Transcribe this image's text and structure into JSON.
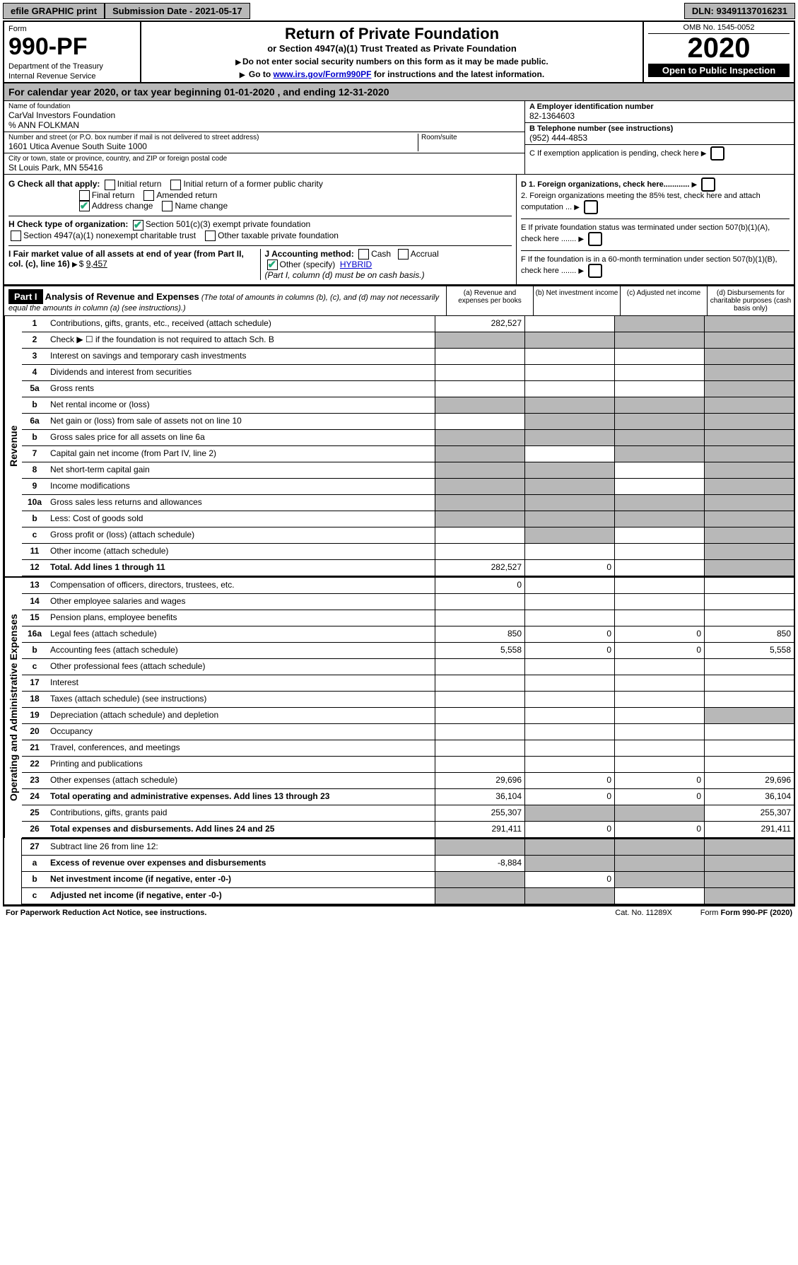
{
  "top": {
    "efile": "efile GRAPHIC print",
    "submission": "Submission Date - 2021-05-17",
    "dln": "DLN: 93491137016231"
  },
  "header": {
    "form_label": "Form",
    "form_number": "990-PF",
    "dept1": "Department of the Treasury",
    "dept2": "Internal Revenue Service",
    "title": "Return of Private Foundation",
    "subtitle": "or Section 4947(a)(1) Trust Treated as Private Foundation",
    "instr1": "Do not enter social security numbers on this form as it may be made public.",
    "instr2_prefix": "Go to ",
    "instr2_link": "www.irs.gov/Form990PF",
    "instr2_suffix": " for instructions and the latest information.",
    "omb": "OMB No. 1545-0052",
    "year": "2020",
    "open": "Open to Public Inspection"
  },
  "cal_year": {
    "prefix": "For calendar year 2020, or tax year beginning ",
    "begin": "01-01-2020",
    "mid": " , and ending ",
    "end": "12-31-2020"
  },
  "entity": {
    "name_label": "Name of foundation",
    "name": "CarVal Investors Foundation",
    "care_of": "% ANN FOLKMAN",
    "addr_label": "Number and street (or P.O. box number if mail is not delivered to street address)",
    "addr": "1601 Utica Avenue South Suite 1000",
    "room_label": "Room/suite",
    "city_label": "City or town, state or province, country, and ZIP or foreign postal code",
    "city": "St Louis Park, MN  55416",
    "ein_label": "A Employer identification number",
    "ein": "82-1364603",
    "phone_label": "B Telephone number (see instructions)",
    "phone": "(952) 444-4853",
    "c_label": "C If exemption application is pending, check here",
    "d1": "D 1. Foreign organizations, check here............",
    "d2": "2. Foreign organizations meeting the 85% test, check here and attach computation ...",
    "e": "E  If private foundation status was terminated under section 507(b)(1)(A), check here .......",
    "f": "F  If the foundation is in a 60-month termination under section 507(b)(1)(B), check here ......."
  },
  "g": {
    "label": "G Check all that apply:",
    "opts": [
      "Initial return",
      "Initial return of a former public charity",
      "Final return",
      "Amended return",
      "Address change",
      "Name change"
    ]
  },
  "h": {
    "label": "H Check type of organization:",
    "o1": "Section 501(c)(3) exempt private foundation",
    "o2": "Section 4947(a)(1) nonexempt charitable trust",
    "o3": "Other taxable private foundation"
  },
  "i": {
    "label": "I Fair market value of all assets at end of year (from Part II, col. (c), line 16)",
    "value": "9,457"
  },
  "j": {
    "label": "J Accounting method:",
    "cash": "Cash",
    "accrual": "Accrual",
    "other_label": "Other (specify)",
    "other_val": "HYBRID",
    "note": "(Part I, column (d) must be on cash basis.)"
  },
  "part1": {
    "tag": "Part I",
    "title": "Analysis of Revenue and Expenses",
    "note": "(The total of amounts in columns (b), (c), and (d) may not necessarily equal the amounts in column (a) (see instructions).)",
    "col_a": "(a)   Revenue and expenses per books",
    "col_b": "(b)  Net investment income",
    "col_c": "(c)  Adjusted net income",
    "col_d": "(d)  Disbursements for charitable purposes (cash basis only)"
  },
  "side_labels": {
    "rev": "Revenue",
    "exp": "Operating and Administrative Expenses"
  },
  "rows": {
    "r1": {
      "n": "1",
      "d": "Contributions, gifts, grants, etc., received (attach schedule)",
      "a": "282,527",
      "c_grey": true,
      "d_grey": true
    },
    "r2": {
      "n": "2",
      "d": "Check ▶ ☐ if the foundation is not required to attach Sch. B",
      "a_grey": true,
      "b_grey": true,
      "c_grey": true,
      "d_grey": true
    },
    "r3": {
      "n": "3",
      "d": "Interest on savings and temporary cash investments",
      "d_grey": true
    },
    "r4": {
      "n": "4",
      "d": "Dividends and interest from securities",
      "d_grey": true
    },
    "r5a": {
      "n": "5a",
      "d": "Gross rents",
      "d_grey": true
    },
    "r5b": {
      "n": "b",
      "d": "Net rental income or (loss)",
      "a_grey": true,
      "b_grey": true,
      "c_grey": true,
      "d_grey": true
    },
    "r6a": {
      "n": "6a",
      "d": "Net gain or (loss) from sale of assets not on line 10",
      "b_grey": true,
      "c_grey": true,
      "d_grey": true
    },
    "r6b": {
      "n": "b",
      "d": "Gross sales price for all assets on line 6a",
      "a_grey": true,
      "b_grey": true,
      "c_grey": true,
      "d_grey": true
    },
    "r7": {
      "n": "7",
      "d": "Capital gain net income (from Part IV, line 2)",
      "a_grey": true,
      "c_grey": true,
      "d_grey": true
    },
    "r8": {
      "n": "8",
      "d": "Net short-term capital gain",
      "a_grey": true,
      "b_grey": true,
      "d_grey": true
    },
    "r9": {
      "n": "9",
      "d": "Income modifications",
      "a_grey": true,
      "b_grey": true,
      "d_grey": true
    },
    "r10a": {
      "n": "10a",
      "d": "Gross sales less returns and allowances",
      "a_grey": true,
      "b_grey": true,
      "c_grey": true,
      "d_grey": true
    },
    "r10b": {
      "n": "b",
      "d": "Less: Cost of goods sold",
      "a_grey": true,
      "b_grey": true,
      "c_grey": true,
      "d_grey": true
    },
    "r10c": {
      "n": "c",
      "d": "Gross profit or (loss) (attach schedule)",
      "b_grey": true,
      "d_grey": true
    },
    "r11": {
      "n": "11",
      "d": "Other income (attach schedule)",
      "d_grey": true
    },
    "r12": {
      "n": "12",
      "d": "Total. Add lines 1 through 11",
      "a": "282,527",
      "b": "0",
      "d_grey": true,
      "bold": true
    },
    "r13": {
      "n": "13",
      "d": "Compensation of officers, directors, trustees, etc.",
      "a": "0"
    },
    "r14": {
      "n": "14",
      "d": "Other employee salaries and wages"
    },
    "r15": {
      "n": "15",
      "d": "Pension plans, employee benefits"
    },
    "r16a": {
      "n": "16a",
      "d": "Legal fees (attach schedule)",
      "a": "850",
      "b": "0",
      "c": "0",
      "dd": "850"
    },
    "r16b": {
      "n": "b",
      "d": "Accounting fees (attach schedule)",
      "a": "5,558",
      "b": "0",
      "c": "0",
      "dd": "5,558"
    },
    "r16c": {
      "n": "c",
      "d": "Other professional fees (attach schedule)"
    },
    "r17": {
      "n": "17",
      "d": "Interest"
    },
    "r18": {
      "n": "18",
      "d": "Taxes (attach schedule) (see instructions)"
    },
    "r19": {
      "n": "19",
      "d": "Depreciation (attach schedule) and depletion",
      "d_grey": true
    },
    "r20": {
      "n": "20",
      "d": "Occupancy"
    },
    "r21": {
      "n": "21",
      "d": "Travel, conferences, and meetings"
    },
    "r22": {
      "n": "22",
      "d": "Printing and publications"
    },
    "r23": {
      "n": "23",
      "d": "Other expenses (attach schedule)",
      "a": "29,696",
      "b": "0",
      "c": "0",
      "dd": "29,696"
    },
    "r24": {
      "n": "24",
      "d": "Total operating and administrative expenses. Add lines 13 through 23",
      "a": "36,104",
      "b": "0",
      "c": "0",
      "dd": "36,104",
      "bold": true
    },
    "r25": {
      "n": "25",
      "d": "Contributions, gifts, grants paid",
      "a": "255,307",
      "b_grey": true,
      "c_grey": true,
      "dd": "255,307"
    },
    "r26": {
      "n": "26",
      "d": "Total expenses and disbursements. Add lines 24 and 25",
      "a": "291,411",
      "b": "0",
      "c": "0",
      "dd": "291,411",
      "bold": true
    },
    "r27": {
      "n": "27",
      "d": "Subtract line 26 from line 12:",
      "a_grey": true,
      "b_grey": true,
      "c_grey": true,
      "d_grey": true
    },
    "r27a": {
      "n": "a",
      "d": "Excess of revenue over expenses and disbursements",
      "a": "-8,884",
      "b_grey": true,
      "c_grey": true,
      "d_grey": true,
      "bold": true
    },
    "r27b": {
      "n": "b",
      "d": "Net investment income (if negative, enter -0-)",
      "a_grey": true,
      "b": "0",
      "c_grey": true,
      "d_grey": true,
      "bold": true
    },
    "r27c": {
      "n": "c",
      "d": "Adjusted net income (if negative, enter -0-)",
      "a_grey": true,
      "b_grey": true,
      "d_grey": true,
      "bold": true
    }
  },
  "footer": {
    "left": "For Paperwork Reduction Act Notice, see instructions.",
    "mid": "Cat. No. 11289X",
    "right": "Form 990-PF (2020)"
  },
  "colors": {
    "grey": "#b8b8b8",
    "link": "#0000cc",
    "check": "#22aa77"
  }
}
